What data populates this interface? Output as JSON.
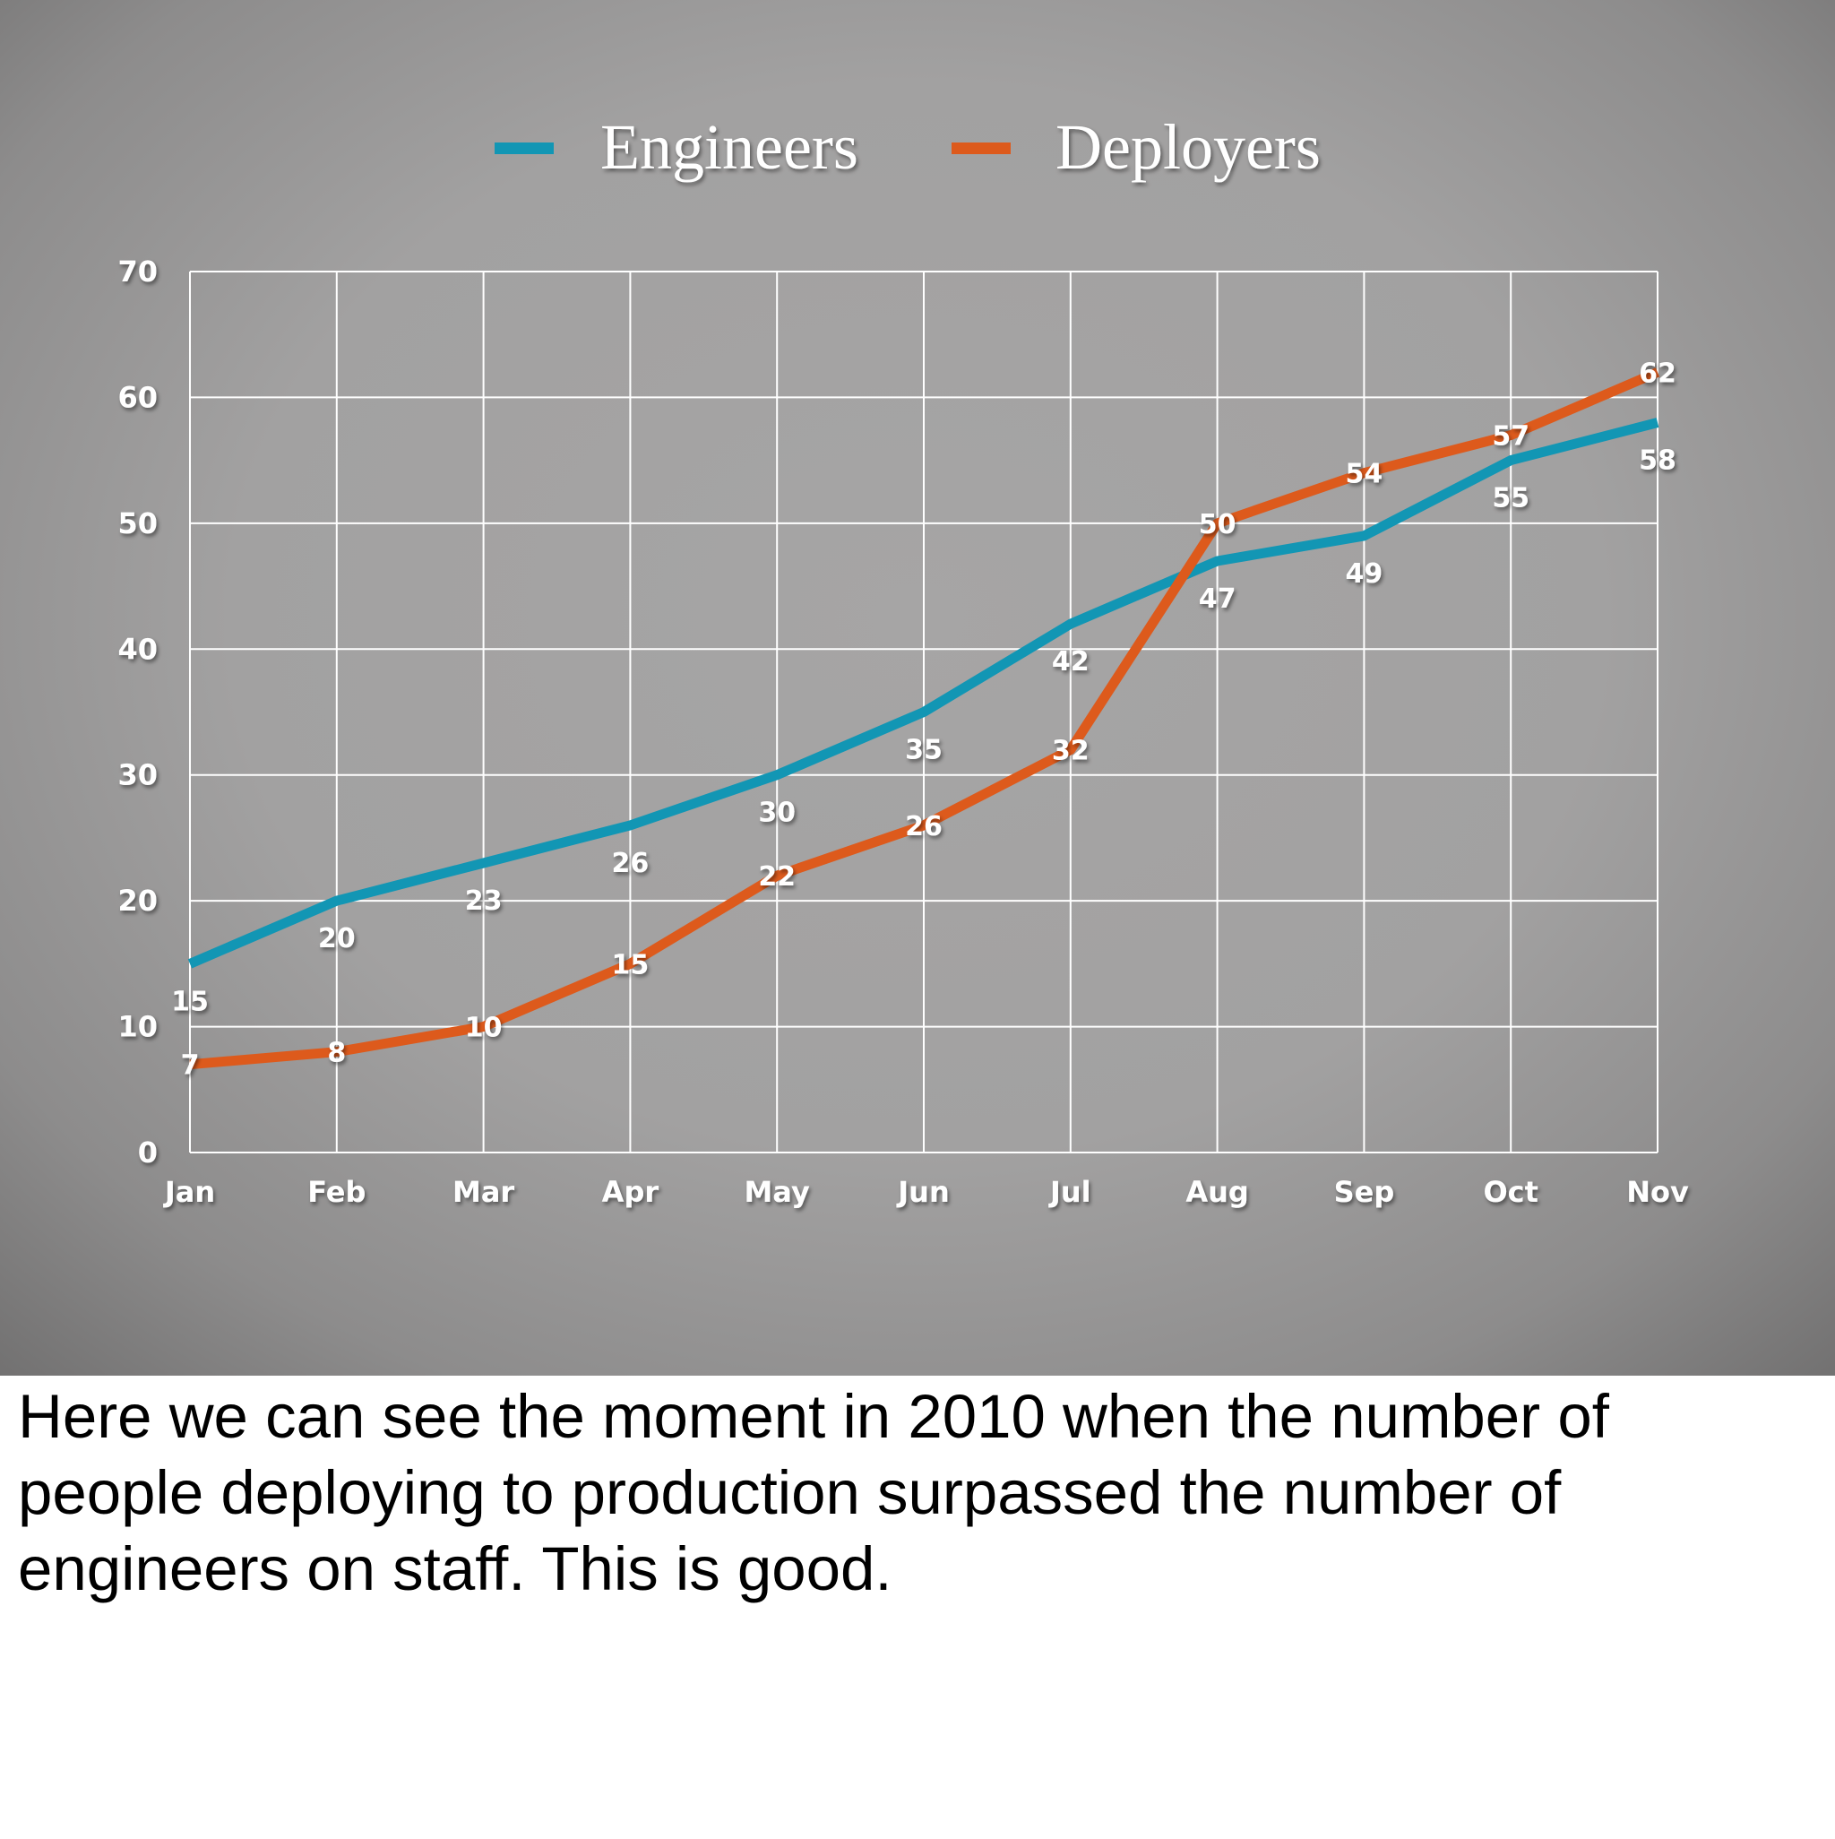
{
  "chart_data": {
    "type": "line",
    "categories": [
      "Jan",
      "Feb",
      "Mar",
      "Apr",
      "May",
      "Jun",
      "Jul",
      "Aug",
      "Sep",
      "Oct",
      "Nov"
    ],
    "series": [
      {
        "name": "Engineers",
        "color": "#1296b4",
        "values": [
          15,
          20,
          23,
          26,
          30,
          35,
          42,
          47,
          49,
          55,
          58
        ],
        "labels": [
          "15",
          "20",
          "23",
          "26",
          "30",
          "35",
          "42",
          "47",
          "49",
          "55",
          "58"
        ]
      },
      {
        "name": "Deployers",
        "color": "#dd5a1c",
        "values": [
          7,
          8,
          10,
          15,
          22,
          26,
          32,
          50,
          54,
          57,
          62
        ],
        "labels": [
          "7",
          "8",
          "10",
          "15",
          "22",
          "26",
          "32",
          "50",
          "54",
          "57",
          "62"
        ]
      }
    ],
    "ylim": [
      0,
      70
    ],
    "yticks": [
      "0",
      "10",
      "20",
      "30",
      "40",
      "50",
      "60",
      "70"
    ],
    "grid": true,
    "legend_position": "top-center",
    "background_color": "#a3a2a2",
    "grid_color": "#ffffff"
  },
  "caption": "Here we can see the moment in 2010 when the number of people deploying to production surpassed the number of engineers on staff. This is good."
}
